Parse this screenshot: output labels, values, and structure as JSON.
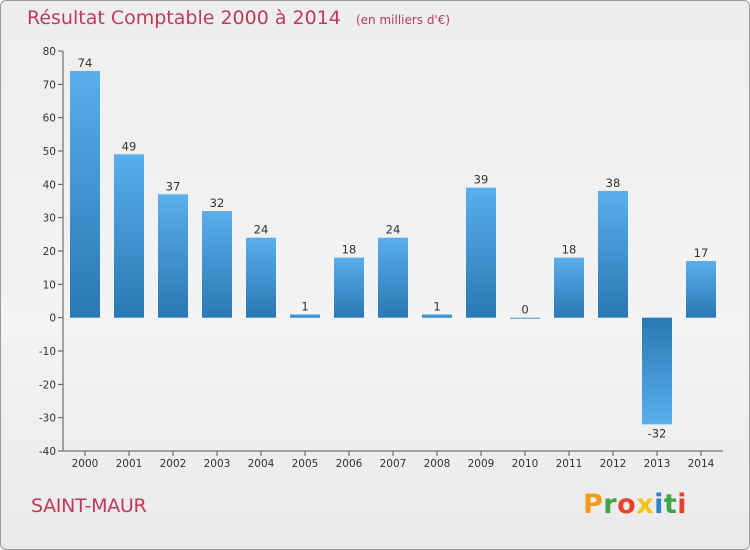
{
  "title": "Résultat Comptable 2000 à 2014",
  "subtitle": "(en milliers d'€)",
  "place": "SAINT-MAUR",
  "brand": {
    "letters": [
      "P",
      "r",
      "o",
      "x",
      "i",
      "t",
      "i"
    ]
  },
  "colors": {
    "title": "#c0385e",
    "bar_light": "#5aaeea",
    "bar_dark": "#2a78b4",
    "brand_letters": [
      "#f39a1c",
      "#3fa34a",
      "#e8412c",
      "#f6c21a",
      "#2f7fd0",
      "#3fa34a",
      "#e8412c"
    ]
  },
  "chart_data": {
    "type": "bar",
    "title": "Résultat Comptable 2000 à 2014",
    "subtitle": "(en milliers d'€)",
    "xlabel": "",
    "ylabel": "",
    "categories": [
      "2000",
      "2001",
      "2002",
      "2003",
      "2004",
      "2005",
      "2006",
      "2007",
      "2008",
      "2009",
      "2010",
      "2011",
      "2012",
      "2013",
      "2014"
    ],
    "values": [
      74,
      49,
      37,
      32,
      24,
      1,
      18,
      24,
      1,
      39,
      0,
      18,
      38,
      -32,
      17
    ],
    "ylim": [
      -40,
      80
    ],
    "yticks": [
      80,
      70,
      60,
      50,
      40,
      30,
      20,
      10,
      0,
      -10,
      -20,
      -30,
      -40
    ],
    "grid": false
  }
}
